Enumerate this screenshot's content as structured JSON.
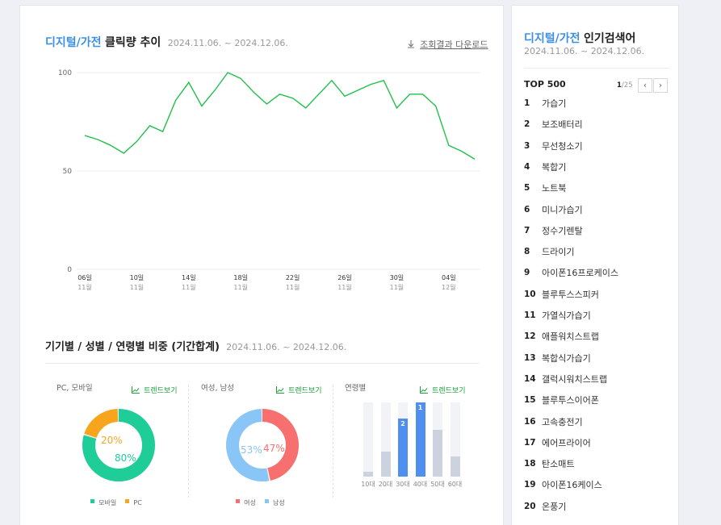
{
  "trend": {
    "category": "디지털/가전",
    "title": "클릭량 추이",
    "date_range": "2024.11.06. ~ 2024.12.06.",
    "download_label": "조회결과 다운로드"
  },
  "chart_data": {
    "type": "line",
    "title": "",
    "xlabel": "",
    "ylabel": "",
    "ylim": [
      0,
      100
    ],
    "yticks": [
      0,
      50,
      100
    ],
    "x": [
      "11-06",
      "11-07",
      "11-08",
      "11-09",
      "11-10",
      "11-11",
      "11-12",
      "11-13",
      "11-14",
      "11-15",
      "11-16",
      "11-17",
      "11-18",
      "11-19",
      "11-20",
      "11-21",
      "11-22",
      "11-23",
      "11-24",
      "11-25",
      "11-26",
      "11-27",
      "11-28",
      "11-29",
      "11-30",
      "12-01",
      "12-02",
      "12-03",
      "12-04",
      "12-05",
      "12-06"
    ],
    "x_ticks": [
      {
        "day": "06일",
        "month": "11월",
        "index": 0
      },
      {
        "day": "10일",
        "month": "11월",
        "index": 4
      },
      {
        "day": "14일",
        "month": "11월",
        "index": 8
      },
      {
        "day": "18일",
        "month": "11월",
        "index": 12
      },
      {
        "day": "22일",
        "month": "11월",
        "index": 16
      },
      {
        "day": "26일",
        "month": "11월",
        "index": 20
      },
      {
        "day": "30일",
        "month": "11월",
        "index": 24
      },
      {
        "day": "04일",
        "month": "12월",
        "index": 28
      }
    ],
    "series": [
      {
        "values": [
          68,
          66,
          63,
          59,
          65,
          73,
          70,
          86,
          95,
          83,
          91,
          100,
          97,
          90,
          84,
          89,
          87,
          82,
          89,
          96,
          88,
          91,
          94,
          96,
          82,
          89,
          89,
          83,
          63,
          60,
          56
        ]
      }
    ],
    "color": "#20c04a"
  },
  "ratio": {
    "title": "기기별 / 성별 / 연령별 비중 (기간합계)",
    "date_range": "2024.11.06. ~ 2024.12.06.",
    "trend_label": "트렌드보기",
    "device": {
      "heading": "PC, 모바일",
      "slices": [
        {
          "label": "모바일",
          "value": 80,
          "color": "#1ecd97",
          "text": "80%"
        },
        {
          "label": "PC",
          "value": 20,
          "color": "#f7a51c",
          "text": "20%"
        }
      ]
    },
    "gender": {
      "heading": "여성, 남성",
      "slices": [
        {
          "label": "여성",
          "value": 47,
          "color": "#f76f6f",
          "text": "47%"
        },
        {
          "label": "남성",
          "value": 53,
          "color": "#8ac5f7",
          "text": "53%"
        }
      ]
    },
    "age": {
      "heading": "연령별",
      "bars": [
        {
          "label": "10대",
          "value": 6,
          "rank": "",
          "highlight": false
        },
        {
          "label": "20대",
          "value": 34,
          "rank": "",
          "highlight": false
        },
        {
          "label": "30대",
          "value": 78,
          "rank": "2",
          "highlight": true
        },
        {
          "label": "40대",
          "value": 100,
          "rank": "1",
          "highlight": true
        },
        {
          "label": "50대",
          "value": 63,
          "rank": "",
          "highlight": false
        },
        {
          "label": "60대",
          "value": 27,
          "rank": "",
          "highlight": false
        }
      ]
    }
  },
  "popular": {
    "category": "디지털/가전",
    "title": "인기검색어",
    "date_range": "2024.11.06. ~ 2024.12.06.",
    "list_title": "TOP 500",
    "page_current": "1",
    "page_total": "/25",
    "prev_icon": "‹",
    "next_icon": "›",
    "items": [
      {
        "rank": "1",
        "keyword": "가습기"
      },
      {
        "rank": "2",
        "keyword": "보조배터리"
      },
      {
        "rank": "3",
        "keyword": "무선청소기"
      },
      {
        "rank": "4",
        "keyword": "복합기"
      },
      {
        "rank": "5",
        "keyword": "노트북"
      },
      {
        "rank": "6",
        "keyword": "미니가습기"
      },
      {
        "rank": "7",
        "keyword": "정수기렌탈"
      },
      {
        "rank": "8",
        "keyword": "드라이기"
      },
      {
        "rank": "9",
        "keyword": "아이폰16프로케이스"
      },
      {
        "rank": "10",
        "keyword": "블루투스스피커"
      },
      {
        "rank": "11",
        "keyword": "가열식가습기"
      },
      {
        "rank": "12",
        "keyword": "애플워치스트랩"
      },
      {
        "rank": "13",
        "keyword": "복합식가습기"
      },
      {
        "rank": "14",
        "keyword": "갤럭시워치스트랩"
      },
      {
        "rank": "15",
        "keyword": "블루투스이어폰"
      },
      {
        "rank": "16",
        "keyword": "고속충전기"
      },
      {
        "rank": "17",
        "keyword": "에어프라이어"
      },
      {
        "rank": "18",
        "keyword": "탄소매트"
      },
      {
        "rank": "19",
        "keyword": "아이폰16케이스"
      },
      {
        "rank": "20",
        "keyword": "온풍기"
      }
    ]
  }
}
